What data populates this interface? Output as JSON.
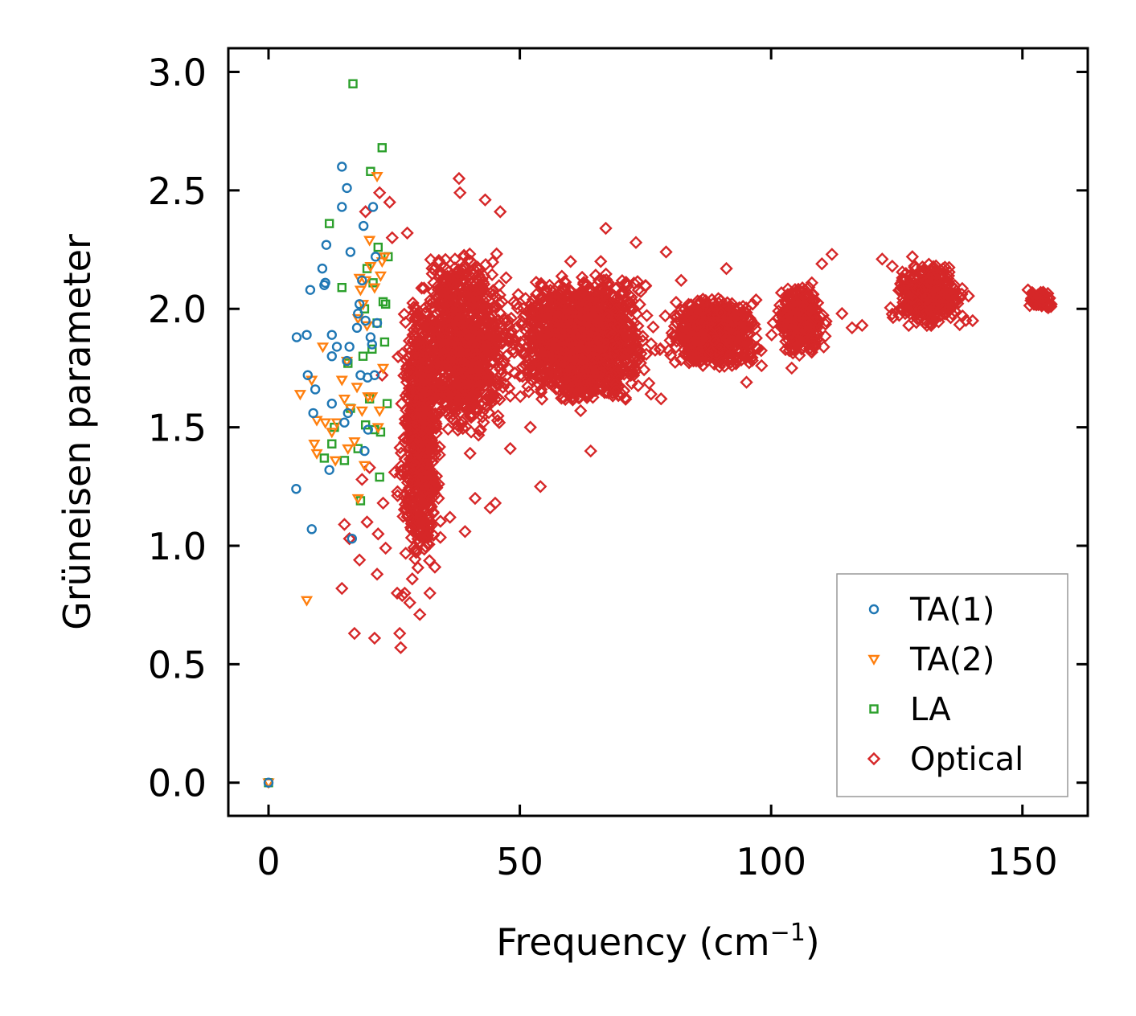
{
  "chart_data": {
    "type": "scatter",
    "title": "",
    "xlabel": "Frequency (cm",
    "xlabel_sup": "−1",
    "xlabel_suffix": ")",
    "ylabel": "Grüneisen parameter",
    "xlim": [
      -8,
      163
    ],
    "ylim": [
      -0.14,
      3.1
    ],
    "xticks": [
      0,
      50,
      100,
      150
    ],
    "xtick_labels": [
      "0",
      "50",
      "100",
      "150"
    ],
    "yticks": [
      0.0,
      0.5,
      1.0,
      1.5,
      2.0,
      2.5,
      3.0
    ],
    "ytick_labels": [
      "0.0",
      "0.5",
      "1.0",
      "1.5",
      "2.0",
      "2.5",
      "3.0"
    ],
    "legend_position": "lower-right",
    "series": [
      {
        "name": "TA(1)",
        "marker": "circle",
        "color": "#1f77b4",
        "points": [
          [
            0,
            0
          ],
          [
            5.5,
            1.24
          ],
          [
            5.6,
            1.88
          ],
          [
            7.6,
            1.89
          ],
          [
            7.8,
            1.72
          ],
          [
            8.3,
            2.08
          ],
          [
            8.6,
            1.07
          ],
          [
            8.9,
            1.56
          ],
          [
            9.3,
            1.66
          ],
          [
            10.7,
            2.17
          ],
          [
            11.1,
            2.1
          ],
          [
            11.3,
            2.11
          ],
          [
            11.5,
            2.27
          ],
          [
            12.1,
            1.32
          ],
          [
            12.6,
            1.8
          ],
          [
            12.6,
            1.6
          ],
          [
            12.6,
            1.89
          ],
          [
            13.6,
            1.84
          ],
          [
            14.6,
            2.6
          ],
          [
            14.6,
            2.43
          ],
          [
            15.1,
            1.52
          ],
          [
            15.6,
            1.78
          ],
          [
            15.6,
            2.51
          ],
          [
            15.8,
            1.56
          ],
          [
            16.1,
            1.84
          ],
          [
            16.3,
            2.24
          ],
          [
            16.6,
            1.03
          ],
          [
            17.6,
            1.92
          ],
          [
            17.8,
            1.98
          ],
          [
            18.1,
            2.02
          ],
          [
            18.3,
            1.72
          ],
          [
            18.6,
            2.12
          ],
          [
            18.9,
            2.35
          ],
          [
            19.1,
            1.4
          ],
          [
            19.3,
            1.95
          ],
          [
            19.7,
            1.71
          ],
          [
            19.8,
            1.49
          ],
          [
            20.3,
            1.88
          ],
          [
            20.6,
            1.85
          ],
          [
            20.8,
            2.43
          ],
          [
            21.1,
            1.72
          ],
          [
            21.3,
            2.22
          ],
          [
            21.6,
            1.94
          ]
        ]
      },
      {
        "name": "TA(2)",
        "marker": "triangle-down",
        "color": "#ff7f0e",
        "points": [
          [
            0,
            0
          ],
          [
            6.3,
            1.64
          ],
          [
            7.6,
            0.77
          ],
          [
            8.6,
            1.7
          ],
          [
            9.1,
            1.43
          ],
          [
            9.6,
            1.53
          ],
          [
            9.6,
            1.39
          ],
          [
            10.8,
            1.84
          ],
          [
            11.3,
            1.52
          ],
          [
            12.6,
            1.48
          ],
          [
            13.3,
            1.36
          ],
          [
            13.6,
            1.52
          ],
          [
            14.6,
            1.7
          ],
          [
            15.1,
            1.62
          ],
          [
            15.6,
            1.78
          ],
          [
            15.8,
            1.41
          ],
          [
            16.3,
            1.58
          ],
          [
            17.1,
            1.44
          ],
          [
            17.6,
            1.67
          ],
          [
            17.8,
            1.2
          ],
          [
            17.8,
            1.96
          ],
          [
            18.1,
            2.13
          ],
          [
            18.3,
            2.08
          ],
          [
            18.6,
            1.57
          ],
          [
            18.8,
            2.02
          ],
          [
            19.1,
            1.34
          ],
          [
            19.3,
            2.12
          ],
          [
            19.6,
            1.93
          ],
          [
            19.8,
            1.63
          ],
          [
            20.1,
            2.29
          ],
          [
            20.3,
            2.18
          ],
          [
            20.6,
            1.63
          ],
          [
            21.1,
            2.09
          ],
          [
            21.6,
            2.56
          ],
          [
            21.8,
            1.5
          ],
          [
            22.1,
            1.57
          ],
          [
            22.3,
            2.14
          ],
          [
            22.6,
            2.2
          ],
          [
            22.8,
            1.75
          ],
          [
            23.1,
            2.22
          ]
        ]
      },
      {
        "name": "LA",
        "marker": "square",
        "color": "#2ca02c",
        "points": [
          [
            0,
            0
          ],
          [
            11.1,
            1.37
          ],
          [
            12.1,
            2.36
          ],
          [
            12.6,
            1.43
          ],
          [
            13.1,
            1.5
          ],
          [
            14.6,
            2.09
          ],
          [
            15.1,
            1.36
          ],
          [
            15.8,
            1.77
          ],
          [
            16.3,
            1.58
          ],
          [
            16.8,
            2.95
          ],
          [
            17.8,
            1.41
          ],
          [
            18.3,
            1.19
          ],
          [
            18.8,
            1.8
          ],
          [
            19.1,
            2.0
          ],
          [
            19.3,
            1.51
          ],
          [
            19.6,
            2.17
          ],
          [
            20.1,
            1.62
          ],
          [
            20.3,
            2.58
          ],
          [
            20.6,
            1.83
          ],
          [
            20.8,
            2.11
          ],
          [
            21.1,
            1.49
          ],
          [
            21.6,
            1.94
          ],
          [
            21.8,
            2.26
          ],
          [
            22.1,
            1.29
          ],
          [
            22.3,
            1.48
          ],
          [
            22.6,
            2.68
          ],
          [
            22.8,
            2.03
          ],
          [
            23.1,
            1.86
          ],
          [
            23.3,
            2.02
          ],
          [
            23.6,
            1.6
          ],
          [
            23.8,
            2.22
          ]
        ]
      },
      {
        "name": "Optical",
        "marker": "diamond",
        "color": "#d62728",
        "points": [
          [
            14.6,
            0.82
          ],
          [
            15.1,
            1.09
          ],
          [
            16.1,
            1.03
          ],
          [
            17.1,
            0.63
          ],
          [
            18.1,
            0.94
          ],
          [
            18.6,
            1.28
          ],
          [
            19.3,
            2.41
          ],
          [
            19.6,
            1.1
          ],
          [
            20.1,
            1.33
          ],
          [
            21.1,
            0.61
          ],
          [
            21.6,
            0.88
          ],
          [
            21.8,
            1.05
          ],
          [
            22.1,
            2.49
          ],
          [
            22.6,
            1.72
          ],
          [
            22.8,
            1.18
          ],
          [
            23.3,
            0.99
          ],
          [
            24.1,
            2.45
          ],
          [
            24.6,
            2.3
          ],
          [
            25.1,
            1.31
          ],
          [
            25.6,
            0.8
          ],
          [
            26.1,
            0.63
          ],
          [
            26.3,
            0.57
          ],
          [
            26.6,
            0.79
          ],
          [
            27.1,
            0.8
          ],
          [
            27.6,
            2.32
          ],
          [
            28.1,
            0.76
          ],
          [
            28.6,
            0.86
          ],
          [
            29.1,
            0.98
          ],
          [
            30.1,
            0.71
          ],
          [
            31.1,
            1.23
          ],
          [
            32.1,
            0.8
          ],
          [
            33.1,
            0.91
          ],
          [
            34.1,
            2.14
          ],
          [
            35.1,
            1.71
          ],
          [
            36.1,
            1.12
          ],
          [
            37.1,
            2.21
          ],
          [
            37.9,
            2.55
          ],
          [
            38.1,
            2.49
          ],
          [
            39.1,
            1.06
          ],
          [
            40.1,
            1.39
          ],
          [
            41.1,
            1.2
          ],
          [
            43.1,
            2.46
          ],
          [
            44.1,
            1.16
          ],
          [
            45.1,
            1.18
          ],
          [
            46.1,
            2.41
          ],
          [
            48.1,
            1.41
          ],
          [
            50.1,
            1.63
          ],
          [
            52.1,
            1.5
          ],
          [
            54.1,
            1.25
          ],
          [
            58.1,
            2.07
          ],
          [
            60.1,
            2.2
          ],
          [
            62.1,
            1.57
          ],
          [
            64.1,
            1.4
          ],
          [
            66.1,
            2.2
          ],
          [
            67.1,
            2.34
          ],
          [
            69.1,
            1.65
          ],
          [
            71.1,
            1.9
          ],
          [
            73.1,
            2.28
          ],
          [
            76.1,
            1.64
          ],
          [
            78.1,
            1.62
          ],
          [
            79.1,
            2.24
          ],
          [
            82.1,
            2.12
          ],
          [
            85.1,
            1.78
          ],
          [
            88.1,
            1.82
          ],
          [
            91.1,
            2.17
          ],
          [
            93.1,
            1.78
          ],
          [
            95.1,
            1.69
          ],
          [
            98.1,
            1.76
          ],
          [
            100.1,
            1.89
          ],
          [
            102.1,
            1.92
          ],
          [
            104.1,
            1.75
          ],
          [
            106.1,
            1.86
          ],
          [
            108.1,
            2.11
          ],
          [
            110.1,
            2.19
          ],
          [
            112.1,
            2.23
          ],
          [
            114.1,
            1.98
          ],
          [
            116.1,
            1.92
          ],
          [
            118.1,
            1.93
          ],
          [
            122.1,
            2.21
          ],
          [
            124.1,
            2.18
          ],
          [
            126.1,
            2.12
          ],
          [
            128.1,
            2.22
          ],
          [
            130.1,
            2.16
          ],
          [
            132.1,
            2.12
          ],
          [
            134.1,
            2.06
          ],
          [
            136.1,
            2.01
          ],
          [
            138.1,
            1.97
          ],
          [
            140.1,
            1.95
          ],
          [
            151.1,
            2.08
          ],
          [
            152.1,
            2.06
          ],
          [
            153.1,
            2.04
          ],
          [
            154.1,
            2.03
          ],
          [
            155.1,
            2.01
          ]
        ],
        "clusters": [
          {
            "x": [
              25,
              35
            ],
            "y": [
              0.9,
              2.05
            ],
            "n": 700
          },
          {
            "x": [
              28,
              50
            ],
            "y": [
              1.45,
              2.25
            ],
            "n": 1000
          },
          {
            "x": [
              45,
              80
            ],
            "y": [
              1.6,
              2.15
            ],
            "n": 1400
          },
          {
            "x": [
              78,
              100
            ],
            "y": [
              1.75,
              2.05
            ],
            "n": 700
          },
          {
            "x": [
              100,
              112
            ],
            "y": [
              1.8,
              2.1
            ],
            "n": 350
          },
          {
            "x": [
              122,
              140
            ],
            "y": [
              1.92,
              2.2
            ],
            "n": 350
          },
          {
            "x": [
              151,
              156
            ],
            "y": [
              2.0,
              2.08
            ],
            "n": 60
          }
        ]
      }
    ]
  }
}
